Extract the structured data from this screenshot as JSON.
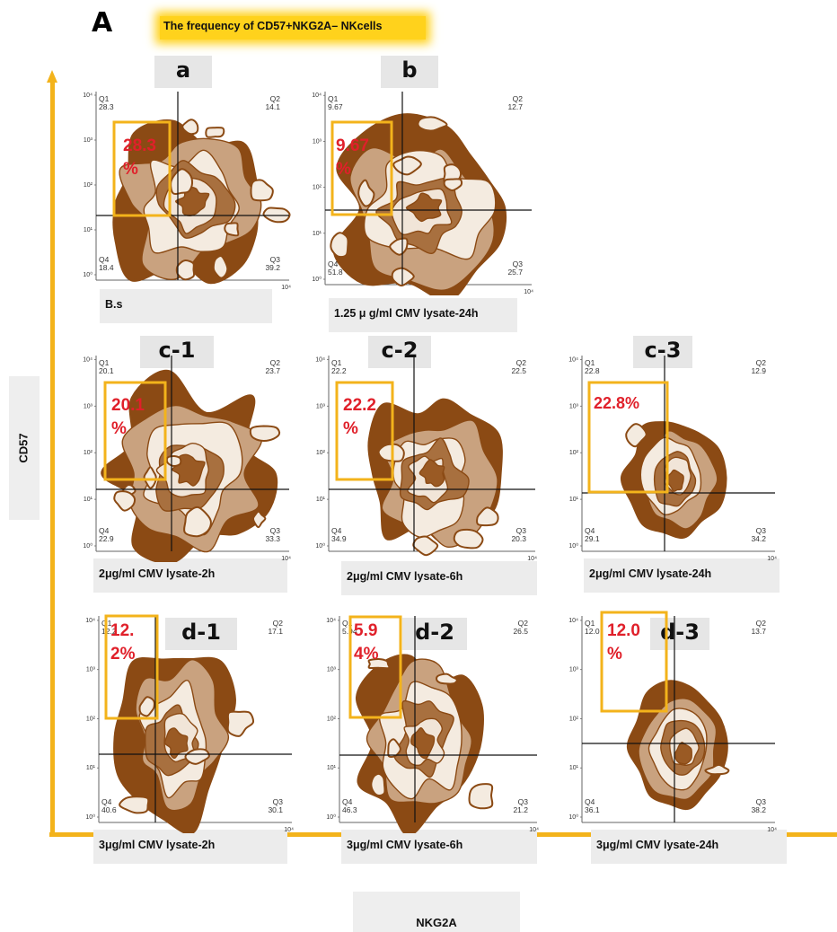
{
  "figure_letter": "A",
  "title": "The frequency of CD57+NKG2A– NKcells",
  "axis_y_label": "CD57",
  "axis_x_label": "NKG2A",
  "colors": {
    "accent": "#f3b31b",
    "contour": "#8b4a14",
    "highlight_text": "#e0202a",
    "box": "#f3b31b"
  },
  "panels": [
    {
      "id": "a",
      "letter": "a",
      "label": "B.s",
      "highlight": "28.3",
      "highlight_lines": [
        "28.3",
        "%"
      ],
      "q1_label": "Q1",
      "q1": "28.3",
      "q2_label": "Q2",
      "q2": "14.1",
      "q3_label": "Q3",
      "q3": "39.2",
      "q4_label": "Q4",
      "q4": "18.4"
    },
    {
      "id": "b",
      "letter": "b",
      "label": "1.25 μ g/ml CMV lysate-24h",
      "highlight": "9.67",
      "highlight_lines": [
        "9.67",
        "%"
      ],
      "q1_label": "Q1",
      "q1": "9.67",
      "q2_label": "Q2",
      "q2": "12.7",
      "q3_label": "Q3",
      "q3": "25.7",
      "q4_label": "Q4",
      "q4": "51.8"
    },
    {
      "id": "c1",
      "letter": "c-1",
      "label": "2μg/ml CMV lysate-2h",
      "highlight": "20.1",
      "highlight_lines": [
        "20.1",
        "%"
      ],
      "q1_label": "Q1",
      "q1": "20.1",
      "q2_label": "Q2",
      "q2": "23.7",
      "q3_label": "Q3",
      "q3": "33.3",
      "q4_label": "Q4",
      "q4": "22.9"
    },
    {
      "id": "c2",
      "letter": "c-2",
      "label": "2μg/ml CMV lysate-6h",
      "highlight": "22.2",
      "highlight_lines": [
        "22.2",
        "%"
      ],
      "q1_label": "Q1",
      "q1": "22.2",
      "q2_label": "Q2",
      "q2": "22.5",
      "q3_label": "Q3",
      "q3": "20.3",
      "q4_label": "Q4",
      "q4": "34.9"
    },
    {
      "id": "c3",
      "letter": "c-3",
      "label": "2μg/ml CMV lysate-24h",
      "highlight": "22.8%",
      "highlight_lines": [
        "22.8%"
      ],
      "q1_label": "Q1",
      "q1": "22.8",
      "q2_label": "Q2",
      "q2": "12.9",
      "q3_label": "Q3",
      "q3": "34.2",
      "q4_label": "Q4",
      "q4": "29.1"
    },
    {
      "id": "d1",
      "letter": "d-1",
      "label": "3μg/ml CMV lysate-2h",
      "highlight": "12.2%",
      "highlight_lines": [
        "12.",
        "2%"
      ],
      "q1_label": "Q1",
      "q1": "12.2",
      "q2_label": "Q2",
      "q2": "17.1",
      "q3_label": "Q3",
      "q3": "30.1",
      "q4_label": "Q4",
      "q4": "40.6"
    },
    {
      "id": "d2",
      "letter": "d-2",
      "label": "3μg/ml CMV lysate-6h",
      "highlight": "5.94%",
      "highlight_lines": [
        "5.9",
        "4%"
      ],
      "q1_label": "Q1",
      "q1": "5.94",
      "q2_label": "Q2",
      "q2": "26.5",
      "q3_label": "Q3",
      "q3": "21.2",
      "q4_label": "Q4",
      "q4": "46.3"
    },
    {
      "id": "d3",
      "letter": "d-3",
      "label": "3μg/ml CMV lysate-24h",
      "highlight": "12.0%",
      "highlight_lines": [
        "12.0",
        "%"
      ],
      "q1_label": "Q1",
      "q1": "12.0",
      "q2_label": "Q2",
      "q2": "13.7",
      "q3_label": "Q3",
      "q3": "38.2",
      "q4_label": "Q4",
      "q4": "36.1"
    }
  ],
  "tick_labels": {
    "y": [
      "10⁰",
      "10¹",
      "10²",
      "10³",
      "10⁴"
    ],
    "x_end": "10⁴",
    "x_start": "10⁰"
  }
}
